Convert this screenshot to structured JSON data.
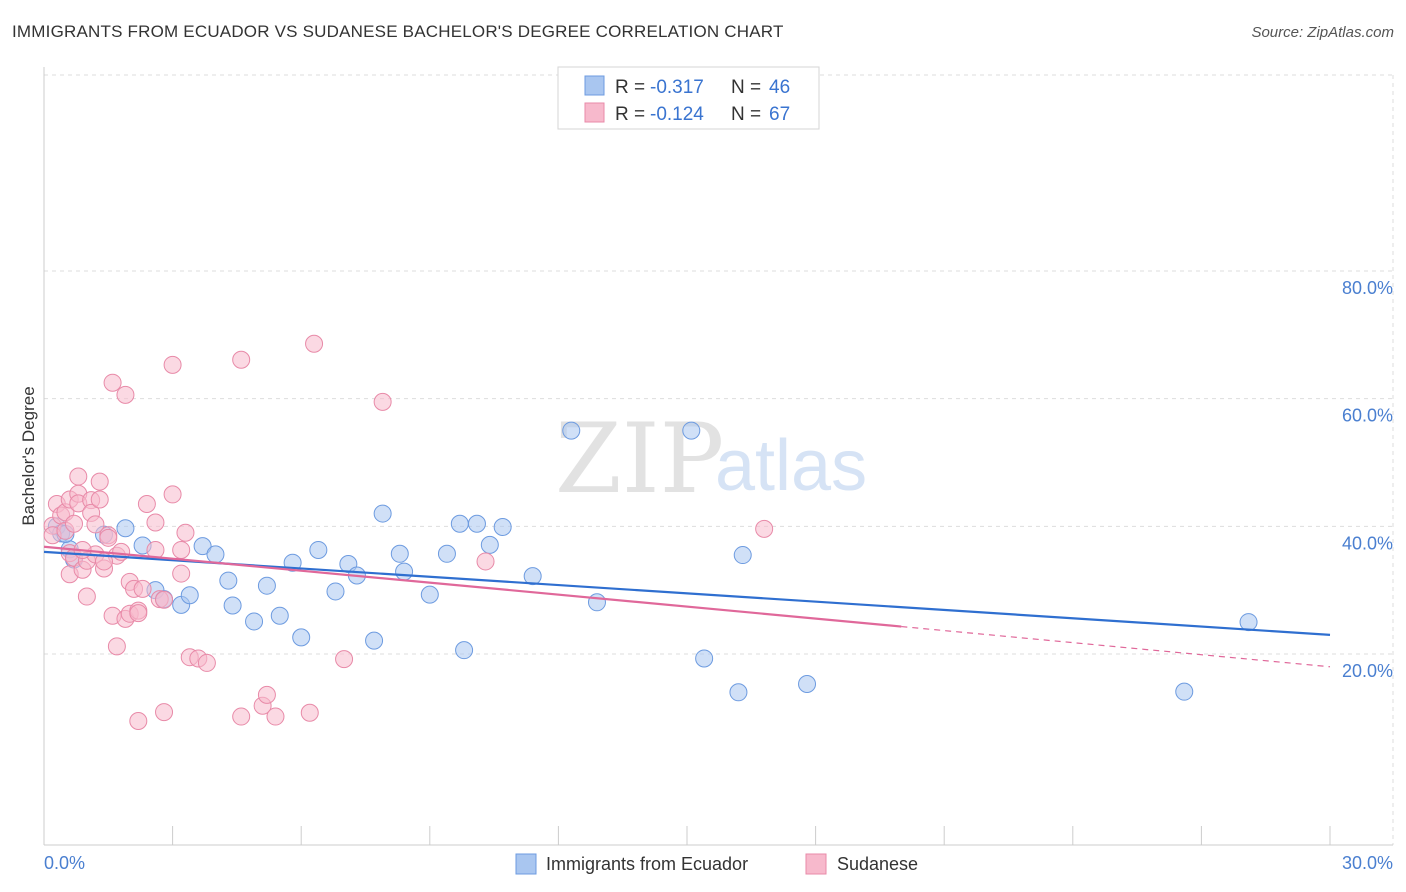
{
  "header": {
    "title": "IMMIGRANTS FROM ECUADOR VS SUDANESE BACHELOR'S DEGREE CORRELATION CHART",
    "source": "Source: ZipAtlas.com"
  },
  "watermark": {
    "zip": "ZIP",
    "atlas": "atlas"
  },
  "legend": {
    "rows": [
      {
        "r_label": "R =",
        "r_value": "-0.317",
        "n_label": "N =",
        "n_value": "46",
        "color": "#a9c6f0",
        "stroke": "#6d9be0"
      },
      {
        "r_label": "R =",
        "r_value": "-0.124",
        "n_label": "N =",
        "n_value": "67",
        "color": "#f7b9cc",
        "stroke": "#e88aa8"
      }
    ]
  },
  "bottom_legend": {
    "items": [
      {
        "label": "Immigrants from Ecuador",
        "color": "#a9c6f0",
        "stroke": "#6d9be0"
      },
      {
        "label": "Sudanese",
        "color": "#f7b9cc",
        "stroke": "#e88aa8"
      }
    ]
  },
  "chart_data": {
    "type": "scatter",
    "title": "IMMIGRANTS FROM ECUADOR VS SUDANESE BACHELOR'S DEGREE CORRELATION CHART",
    "xlabel": "",
    "ylabel": "Bachelor's Degree",
    "xlim": [
      0,
      30
    ],
    "ylim": [
      0,
      85
    ],
    "y_ticks": [
      20,
      40,
      60,
      80
    ],
    "y_tick_labels": [
      "20.0%",
      "40.0%",
      "60.0%",
      "80.0%"
    ],
    "x_tick_labels": [
      "0.0%",
      "30.0%"
    ],
    "grid": true,
    "legend_position": "top-center",
    "series": [
      {
        "name": "Immigrants from Ecuador",
        "color": "#6d9be0",
        "fill": "#a9c6f0",
        "line_color": "#2f6fd0",
        "trend": {
          "x": [
            0,
            30
          ],
          "y": [
            36.0,
            23.0
          ]
        },
        "points": [
          [
            0.3,
            40.0
          ],
          [
            0.4,
            38.9
          ],
          [
            0.6,
            36.4
          ],
          [
            0.7,
            34.8
          ],
          [
            1.4,
            38.7
          ],
          [
            1.9,
            39.7
          ],
          [
            2.3,
            37.0
          ],
          [
            2.6,
            30.0
          ],
          [
            2.8,
            28.6
          ],
          [
            3.2,
            27.7
          ],
          [
            3.4,
            29.2
          ],
          [
            3.7,
            36.9
          ],
          [
            4.0,
            35.6
          ],
          [
            4.3,
            31.5
          ],
          [
            4.4,
            27.6
          ],
          [
            4.9,
            25.1
          ],
          [
            5.2,
            30.7
          ],
          [
            5.5,
            26.0
          ],
          [
            5.8,
            34.3
          ],
          [
            6.0,
            22.6
          ],
          [
            6.4,
            36.3
          ],
          [
            6.8,
            29.8
          ],
          [
            7.1,
            34.1
          ],
          [
            7.3,
            32.3
          ],
          [
            7.7,
            22.1
          ],
          [
            7.9,
            42.0
          ],
          [
            8.3,
            35.7
          ],
          [
            8.4,
            32.9
          ],
          [
            9.0,
            29.3
          ],
          [
            9.4,
            35.7
          ],
          [
            9.7,
            40.4
          ],
          [
            9.8,
            20.6
          ],
          [
            10.1,
            40.4
          ],
          [
            10.4,
            37.1
          ],
          [
            10.7,
            39.9
          ],
          [
            11.4,
            32.2
          ],
          [
            12.3,
            55.0
          ],
          [
            12.9,
            28.1
          ],
          [
            15.1,
            55.0
          ],
          [
            15.4,
            19.3
          ],
          [
            16.2,
            14.0
          ],
          [
            16.3,
            35.5
          ],
          [
            17.8,
            15.3
          ],
          [
            26.6,
            14.1
          ],
          [
            28.1,
            25.0
          ],
          [
            0.5,
            38.8
          ]
        ]
      },
      {
        "name": "Sudanese",
        "color": "#e88aa8",
        "fill": "#f7b9cc",
        "line_color": "#e0689a",
        "trend": {
          "x": [
            0,
            20
          ],
          "y": [
            36.8,
            24.3
          ]
        },
        "trend_dashed": {
          "x": [
            20,
            30
          ],
          "y": [
            24.3,
            18.0
          ]
        },
        "points": [
          [
            0.2,
            40.1
          ],
          [
            0.2,
            38.6
          ],
          [
            0.3,
            43.5
          ],
          [
            0.4,
            41.7
          ],
          [
            0.5,
            39.3
          ],
          [
            0.5,
            42.2
          ],
          [
            0.6,
            44.2
          ],
          [
            0.6,
            35.8
          ],
          [
            0.6,
            32.5
          ],
          [
            0.7,
            35.1
          ],
          [
            0.7,
            40.4
          ],
          [
            0.8,
            45.1
          ],
          [
            0.8,
            43.6
          ],
          [
            0.8,
            47.8
          ],
          [
            0.9,
            33.2
          ],
          [
            1.0,
            29.0
          ],
          [
            1.0,
            34.6
          ],
          [
            1.1,
            44.1
          ],
          [
            1.1,
            42.1
          ],
          [
            1.2,
            35.6
          ],
          [
            1.2,
            40.3
          ],
          [
            1.3,
            47.0
          ],
          [
            1.3,
            44.2
          ],
          [
            1.4,
            33.4
          ],
          [
            1.5,
            38.6
          ],
          [
            1.5,
            38.2
          ],
          [
            1.6,
            62.5
          ],
          [
            1.6,
            26.0
          ],
          [
            1.7,
            21.2
          ],
          [
            1.7,
            35.4
          ],
          [
            1.8,
            36.0
          ],
          [
            1.9,
            60.6
          ],
          [
            1.9,
            25.5
          ],
          [
            2.0,
            31.3
          ],
          [
            2.0,
            26.3
          ],
          [
            2.1,
            30.2
          ],
          [
            2.2,
            26.8
          ],
          [
            2.2,
            26.4
          ],
          [
            2.3,
            30.2
          ],
          [
            2.2,
            9.5
          ],
          [
            2.4,
            43.5
          ],
          [
            2.6,
            40.6
          ],
          [
            2.6,
            36.3
          ],
          [
            2.7,
            28.6
          ],
          [
            2.8,
            28.5
          ],
          [
            2.8,
            10.9
          ],
          [
            3.0,
            45.0
          ],
          [
            3.0,
            65.3
          ],
          [
            3.2,
            36.3
          ],
          [
            3.2,
            32.6
          ],
          [
            3.4,
            19.5
          ],
          [
            3.6,
            19.3
          ],
          [
            3.8,
            18.6
          ],
          [
            4.6,
            66.1
          ],
          [
            4.6,
            10.2
          ],
          [
            5.1,
            11.9
          ],
          [
            5.2,
            13.6
          ],
          [
            5.4,
            10.2
          ],
          [
            6.2,
            10.8
          ],
          [
            6.3,
            68.6
          ],
          [
            7.0,
            19.2
          ],
          [
            7.9,
            59.5
          ],
          [
            10.3,
            34.5
          ],
          [
            16.8,
            39.6
          ],
          [
            3.3,
            39.0
          ],
          [
            1.4,
            34.5
          ],
          [
            0.9,
            36.3
          ]
        ]
      }
    ]
  }
}
